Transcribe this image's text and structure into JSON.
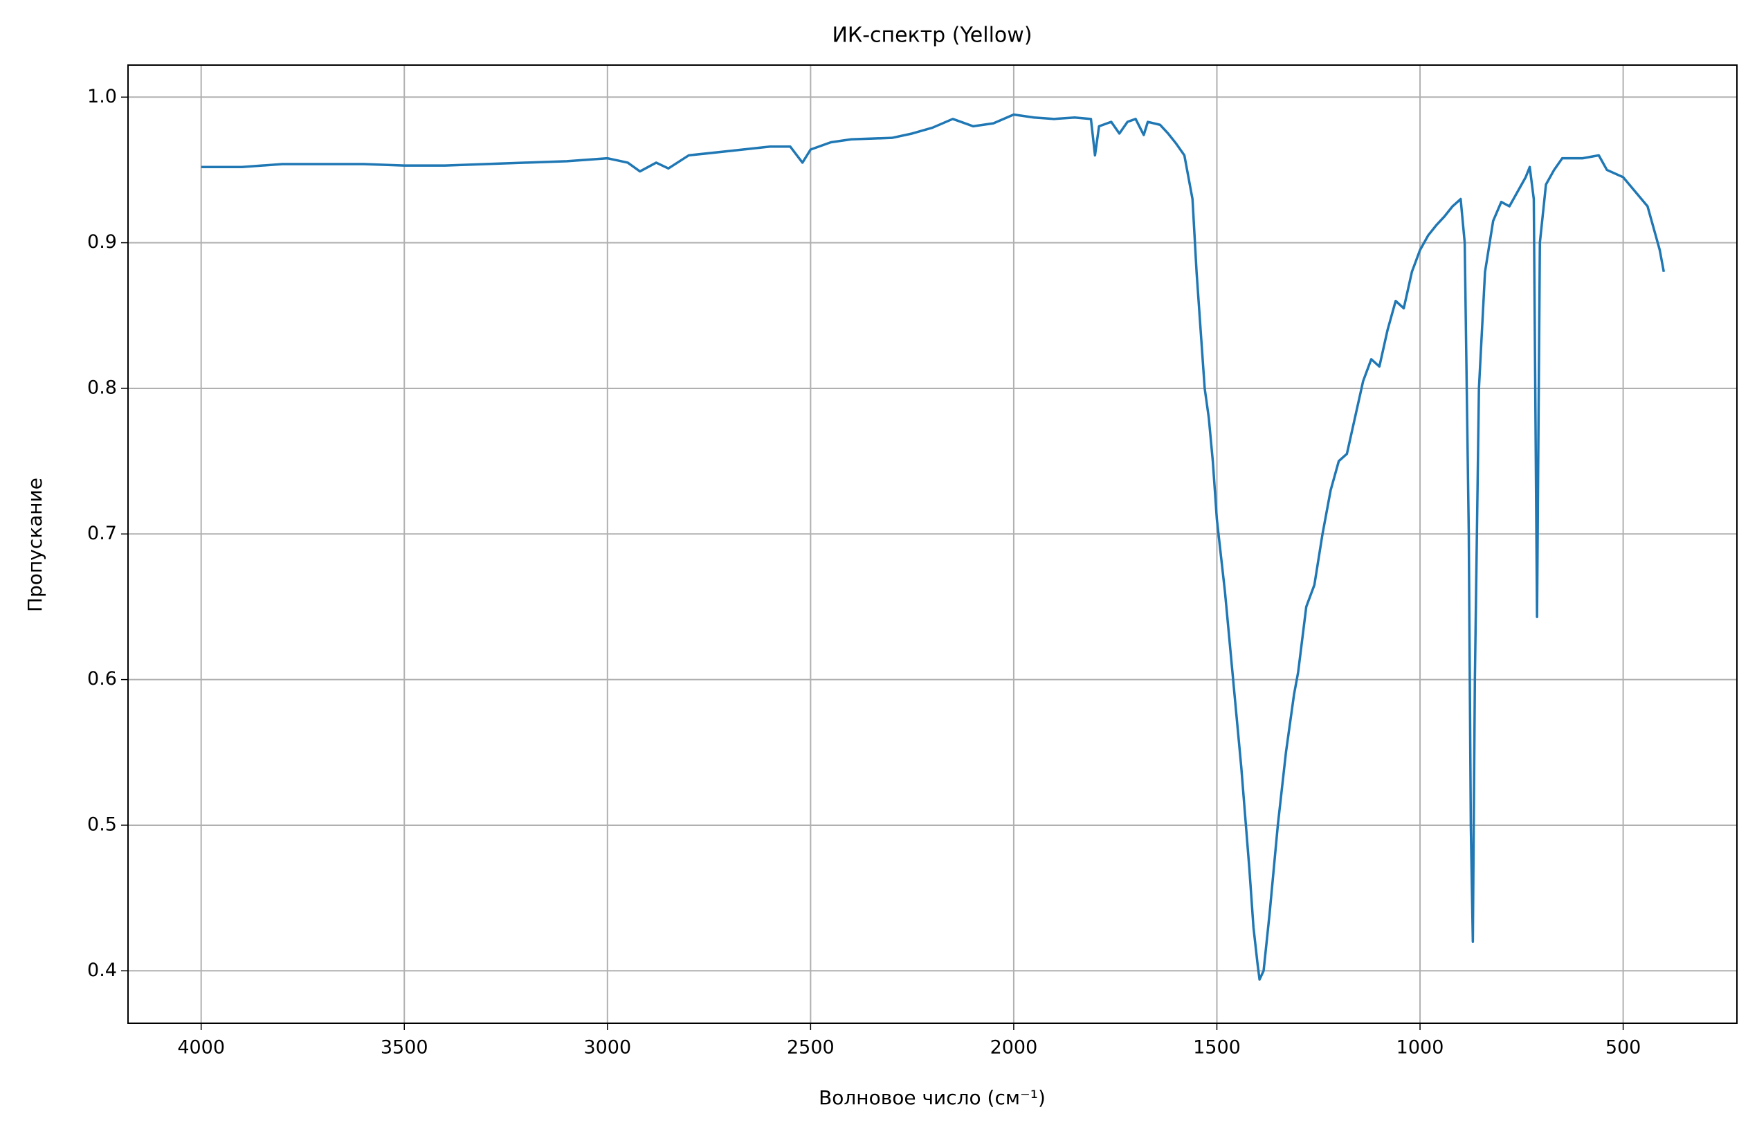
{
  "chart_data": {
    "type": "line",
    "title": "ИК-спектр (Yellow)",
    "x_label": "Волновое число (см⁻¹)",
    "y_label": "Пропускание",
    "color": "#1f77b4",
    "grid": true,
    "xlim": [
      4180,
      220
    ],
    "ylim": [
      0.364,
      1.022
    ],
    "xticks": [
      4000,
      3500,
      3000,
      2500,
      2000,
      1500,
      1000,
      500
    ],
    "yticks": [
      0.4,
      0.5,
      0.6,
      0.7,
      0.8,
      0.9,
      {
        "value": 1.0,
        "label": "1.0"
      }
    ],
    "x": [
      4000,
      3900,
      3800,
      3700,
      3600,
      3500,
      3400,
      3300,
      3200,
      3100,
      3000,
      2950,
      2920,
      2880,
      2850,
      2800,
      2700,
      2600,
      2550,
      2520,
      2500,
      2450,
      2400,
      2300,
      2250,
      2200,
      2150,
      2100,
      2050,
      2000,
      1950,
      1900,
      1850,
      1810,
      1800,
      1790,
      1760,
      1740,
      1720,
      1700,
      1680,
      1670,
      1640,
      1620,
      1600,
      1580,
      1560,
      1550,
      1540,
      1530,
      1520,
      1510,
      1500,
      1480,
      1460,
      1440,
      1420,
      1410,
      1400,
      1395,
      1385,
      1370,
      1350,
      1330,
      1310,
      1300,
      1280,
      1260,
      1240,
      1220,
      1200,
      1180,
      1160,
      1140,
      1120,
      1100,
      1080,
      1060,
      1040,
      1020,
      1000,
      980,
      960,
      940,
      920,
      900,
      890,
      880,
      875,
      870,
      865,
      855,
      840,
      820,
      800,
      780,
      760,
      740,
      730,
      720,
      712,
      705,
      690,
      670,
      650,
      600,
      560,
      540,
      500,
      470,
      440,
      420,
      410,
      400
    ],
    "values": [
      0.952,
      0.952,
      0.954,
      0.954,
      0.954,
      0.953,
      0.953,
      0.954,
      0.955,
      0.956,
      0.958,
      0.955,
      0.949,
      0.955,
      0.951,
      0.96,
      0.963,
      0.966,
      0.966,
      0.955,
      0.964,
      0.969,
      0.971,
      0.972,
      0.975,
      0.979,
      0.985,
      0.98,
      0.982,
      0.988,
      0.986,
      0.985,
      0.986,
      0.985,
      0.96,
      0.98,
      0.983,
      0.975,
      0.983,
      0.985,
      0.974,
      0.983,
      0.981,
      0.975,
      0.968,
      0.96,
      0.93,
      0.88,
      0.84,
      0.8,
      0.78,
      0.75,
      0.71,
      0.66,
      0.6,
      0.54,
      0.47,
      0.43,
      0.405,
      0.394,
      0.4,
      0.44,
      0.5,
      0.55,
      0.59,
      0.605,
      0.65,
      0.665,
      0.7,
      0.73,
      0.75,
      0.755,
      0.78,
      0.805,
      0.82,
      0.815,
      0.84,
      0.86,
      0.855,
      0.88,
      0.895,
      0.905,
      0.912,
      0.918,
      0.925,
      0.93,
      0.9,
      0.7,
      0.5,
      0.42,
      0.6,
      0.8,
      0.88,
      0.915,
      0.928,
      0.925,
      0.935,
      0.945,
      0.952,
      0.93,
      0.643,
      0.9,
      0.94,
      0.95,
      0.958,
      0.958,
      0.96,
      0.95,
      0.945,
      0.935,
      0.925,
      0.905,
      0.895,
      0.88
    ]
  }
}
